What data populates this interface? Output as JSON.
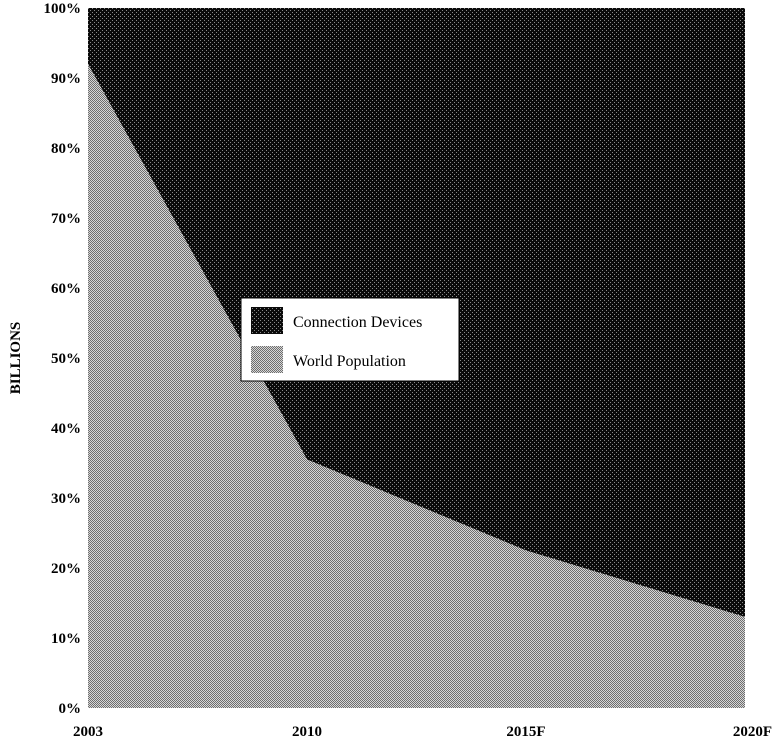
{
  "chart_data": {
    "type": "area",
    "stacked": true,
    "normalized": true,
    "categories": [
      "2003",
      "2010",
      "2015F",
      "2020F"
    ],
    "series": [
      {
        "name": "World Population",
        "values": [
          92,
          35.5,
          22.5,
          13
        ]
      },
      {
        "name": "Connection Devices",
        "values": [
          8,
          64.5,
          77.5,
          87
        ]
      }
    ],
    "ylabel": "BILLIONS",
    "xlabel": "",
    "title": "",
    "ylim": [
      0,
      100
    ],
    "yticks": [
      "0%",
      "10%",
      "20%",
      "30%",
      "40%",
      "50%",
      "60%",
      "70%",
      "80%",
      "90%",
      "100%"
    ],
    "grid": false,
    "legend": {
      "placement": "center-left",
      "entries": [
        "Connection Devices",
        "World Population"
      ]
    },
    "colors": {
      "connection_devices": "#0d0d0d",
      "world_population": "#bdbdbd"
    }
  }
}
